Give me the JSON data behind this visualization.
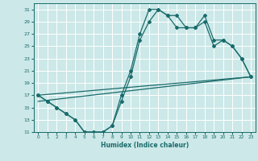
{
  "xlabel": "Humidex (Indice chaleur)",
  "bg_color": "#cce8e8",
  "grid_color": "#ffffff",
  "line_color": "#1a6b6b",
  "xlim": [
    -0.5,
    23.5
  ],
  "ylim": [
    11,
    32
  ],
  "xticks": [
    0,
    1,
    2,
    3,
    4,
    5,
    6,
    7,
    8,
    9,
    10,
    11,
    12,
    13,
    14,
    15,
    16,
    17,
    18,
    19,
    20,
    21,
    22,
    23
  ],
  "yticks": [
    11,
    13,
    15,
    17,
    19,
    21,
    23,
    25,
    27,
    29,
    31
  ],
  "curve1_x": [
    0,
    1,
    2,
    3,
    4,
    5,
    6,
    7,
    8,
    9,
    10,
    11,
    12,
    13,
    14,
    15,
    16,
    17,
    18,
    19,
    20,
    21,
    22,
    23
  ],
  "curve1_y": [
    17,
    16,
    15,
    14,
    13,
    11,
    11,
    11,
    12,
    17,
    21,
    27,
    31,
    31,
    30,
    30,
    28,
    28,
    30,
    26,
    26,
    25,
    23,
    20
  ],
  "curve2_x": [
    0,
    1,
    2,
    3,
    4,
    5,
    6,
    7,
    8,
    9,
    10,
    11,
    12,
    13,
    14,
    15,
    16,
    17,
    18,
    19,
    20,
    21,
    22,
    23
  ],
  "curve2_y": [
    17,
    16,
    15,
    14,
    13,
    11,
    11,
    11,
    12,
    16,
    20,
    26,
    29,
    31,
    30,
    28,
    28,
    28,
    29,
    25,
    26,
    25,
    23,
    20
  ],
  "line1_x": [
    0,
    23
  ],
  "line1_y": [
    17,
    20
  ],
  "line2_x": [
    0,
    23
  ],
  "line2_y": [
    16,
    20
  ]
}
